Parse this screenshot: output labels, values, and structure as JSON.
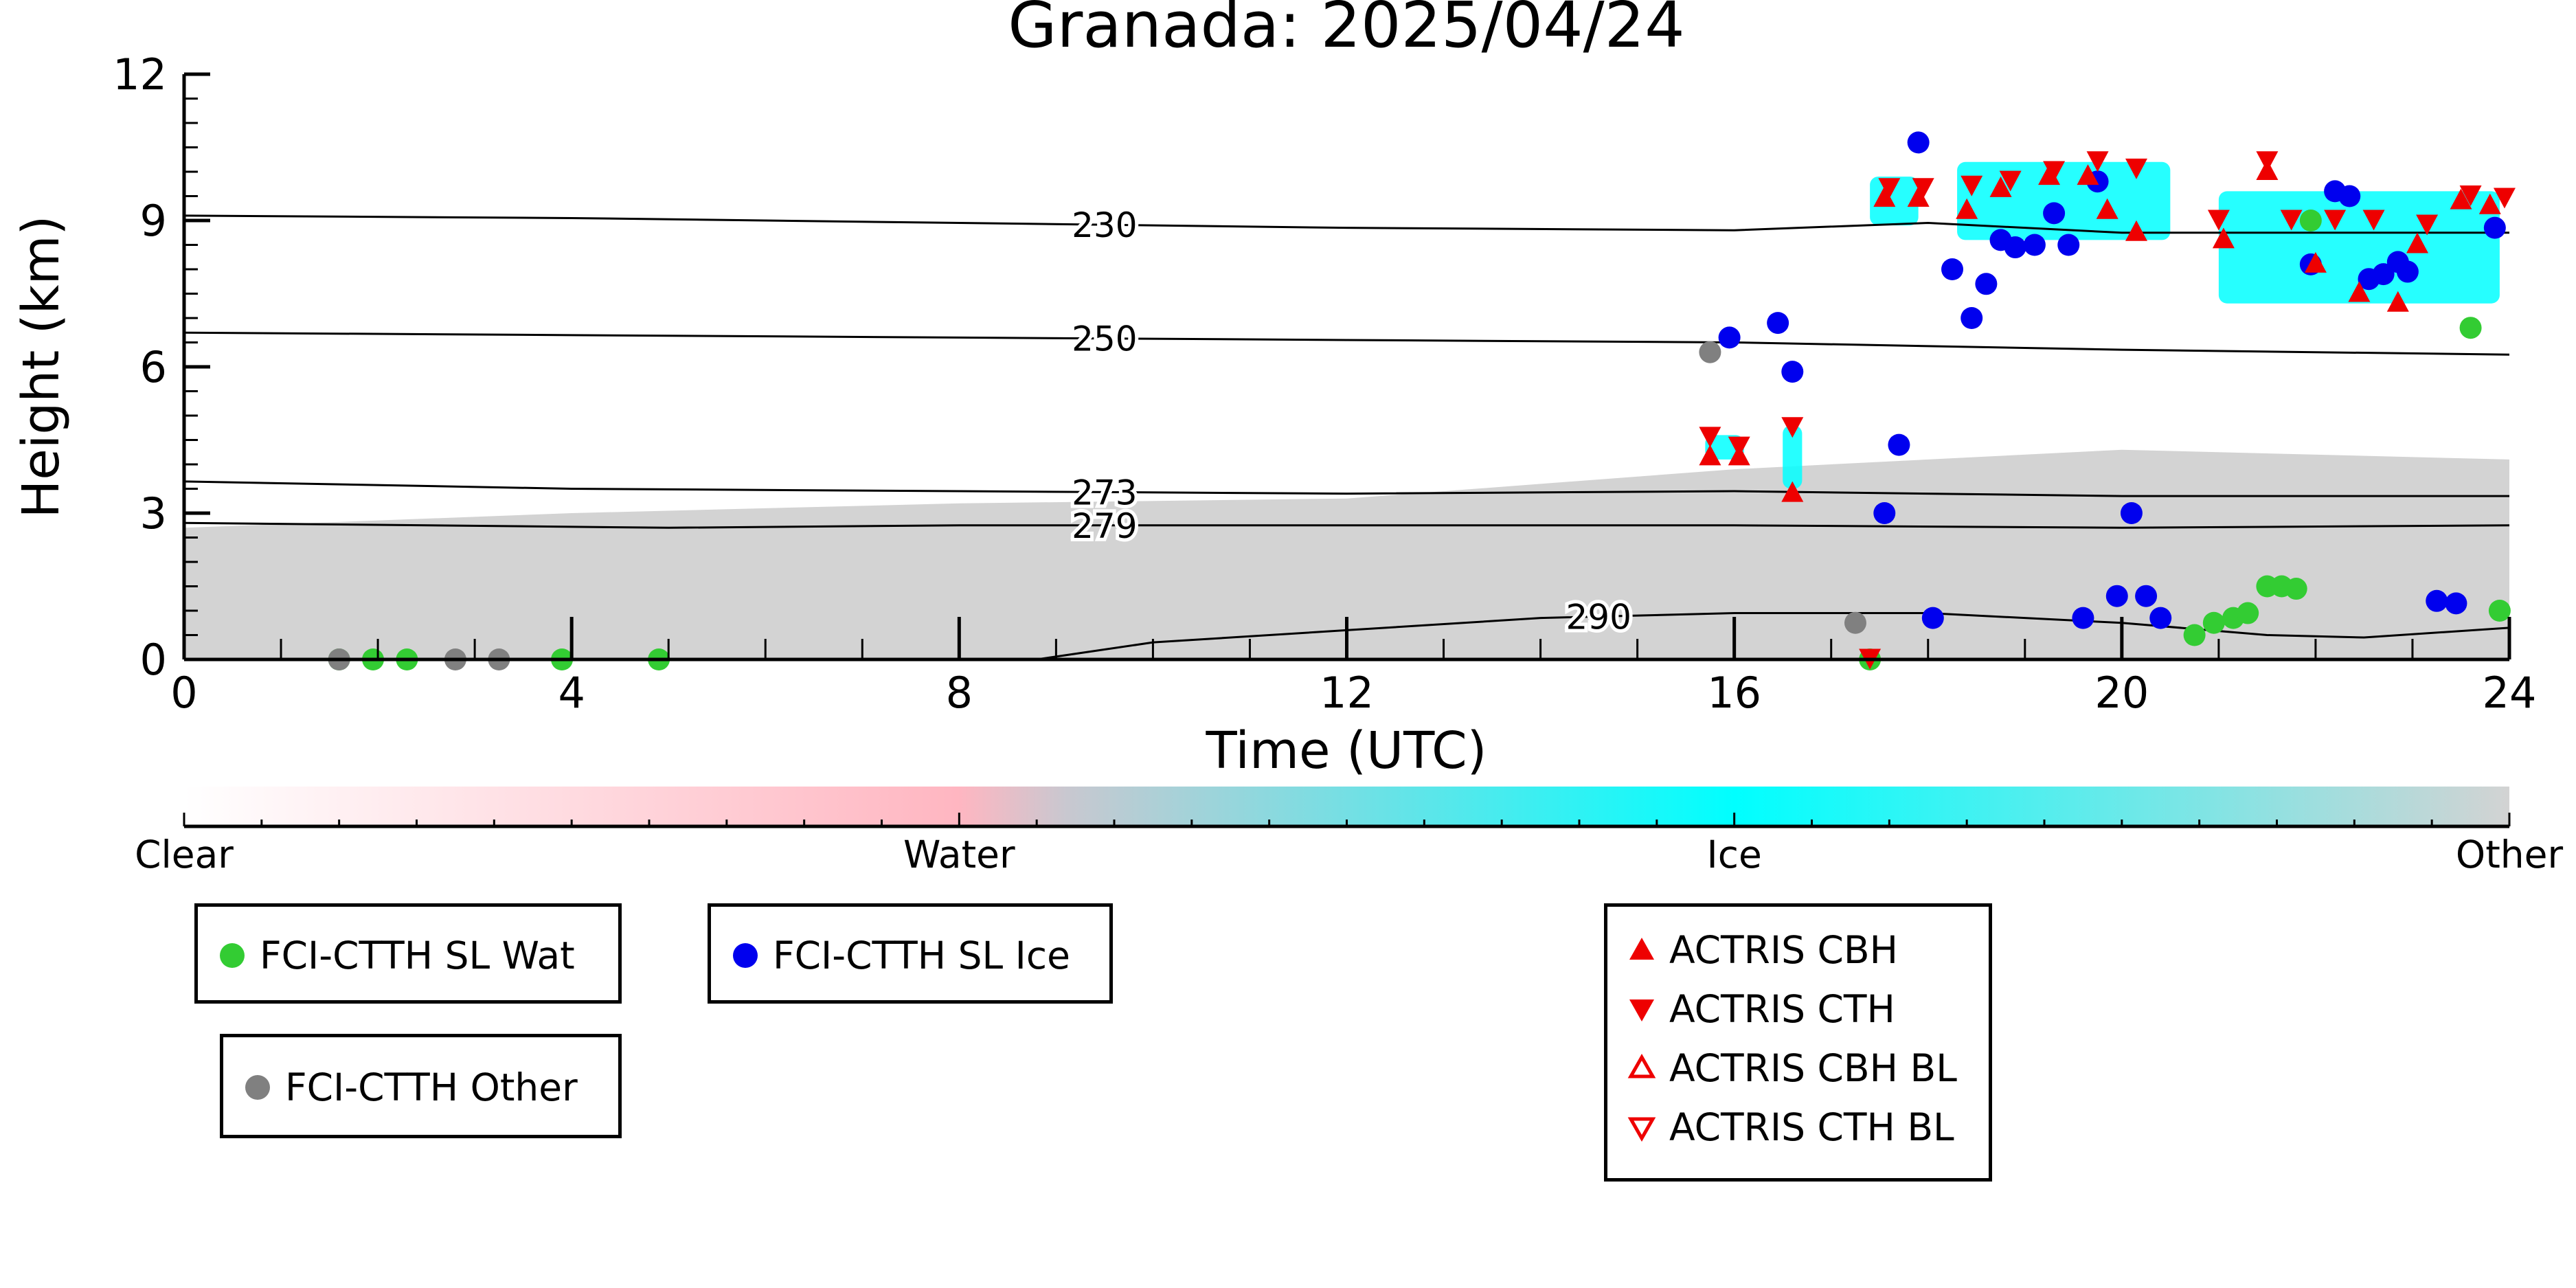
{
  "chart_data": {
    "type": "scatter",
    "title": "Granada: 2025/04/24",
    "xlabel": "Time (UTC)",
    "ylabel": "Height (km)",
    "xlim": [
      0,
      24
    ],
    "ylim": [
      0,
      12
    ],
    "x_ticks": [
      "0",
      "4",
      "8",
      "12",
      "16",
      "20",
      "24"
    ],
    "y_ticks": [
      "0",
      "3",
      "6",
      "9",
      "12"
    ],
    "colorbar": {
      "labels": [
        "Clear",
        "Water",
        "Ice",
        "Other"
      ],
      "colors": [
        "#ffffff",
        "#ffb6c1",
        "#00ffff",
        "#d3d3d3"
      ]
    },
    "background_field": {
      "description_color": "#d3d3d3",
      "boundary_layer_top_km": [
        [
          0,
          2.7
        ],
        [
          4,
          3.0
        ],
        [
          8,
          3.2
        ],
        [
          12,
          3.3
        ],
        [
          16,
          3.9
        ],
        [
          20,
          4.3
        ],
        [
          24,
          4.1
        ]
      ],
      "ice_cloud_color": "#00ffff"
    },
    "isotherms": [
      {
        "label": "230",
        "points": [
          [
            0,
            9.1
          ],
          [
            4,
            9.05
          ],
          [
            8,
            8.95
          ],
          [
            12,
            8.85
          ],
          [
            16,
            8.8
          ],
          [
            18,
            8.95
          ],
          [
            20,
            8.75
          ],
          [
            24,
            8.75
          ]
        ]
      },
      {
        "label": "250",
        "points": [
          [
            0,
            6.7
          ],
          [
            4,
            6.65
          ],
          [
            8,
            6.6
          ],
          [
            12,
            6.55
          ],
          [
            16,
            6.5
          ],
          [
            20,
            6.35
          ],
          [
            24,
            6.25
          ]
        ]
      },
      {
        "label": "273",
        "points": [
          [
            0,
            3.65
          ],
          [
            4,
            3.5
          ],
          [
            8,
            3.45
          ],
          [
            12,
            3.4
          ],
          [
            16,
            3.45
          ],
          [
            20,
            3.35
          ],
          [
            24,
            3.35
          ]
        ]
      },
      {
        "label": "279",
        "points": [
          [
            0,
            2.8
          ],
          [
            5,
            2.7
          ],
          [
            8,
            2.75
          ],
          [
            12,
            2.75
          ],
          [
            16,
            2.75
          ],
          [
            20,
            2.7
          ],
          [
            24,
            2.75
          ]
        ]
      },
      {
        "label": "290",
        "points": [
          [
            0,
            0
          ],
          [
            8.8,
            0
          ],
          [
            10,
            0.35
          ],
          [
            12,
            0.6
          ],
          [
            14,
            0.85
          ],
          [
            16,
            0.95
          ],
          [
            18,
            0.95
          ],
          [
            20,
            0.75
          ],
          [
            21.5,
            0.5
          ],
          [
            22.5,
            0.45
          ],
          [
            24,
            0.65
          ]
        ]
      }
    ],
    "series": [
      {
        "name": "FCI-CTTH SL Wat",
        "color": "#33cc33",
        "marker": "circle",
        "points": [
          [
            1.6,
            0
          ],
          [
            1.95,
            0
          ],
          [
            2.3,
            0
          ],
          [
            3.9,
            0
          ],
          [
            4.9,
            0
          ],
          [
            17.4,
            0
          ],
          [
            20.75,
            0.5
          ],
          [
            20.95,
            0.75
          ],
          [
            21.15,
            0.85
          ],
          [
            21.3,
            0.95
          ],
          [
            21.5,
            1.5
          ],
          [
            21.65,
            1.5
          ],
          [
            21.8,
            1.45
          ],
          [
            21.95,
            9.0
          ],
          [
            23.6,
            6.8
          ],
          [
            23.9,
            1.0
          ]
        ]
      },
      {
        "name": "FCI-CTTH SL Ice",
        "color": "#0000ee",
        "marker": "circle",
        "points": [
          [
            15.95,
            6.6
          ],
          [
            16.45,
            6.9
          ],
          [
            16.6,
            5.9
          ],
          [
            17.55,
            3.0
          ],
          [
            17.7,
            4.4
          ],
          [
            17.9,
            10.6
          ],
          [
            18.05,
            0.85
          ],
          [
            18.25,
            8.0
          ],
          [
            18.45,
            7.0
          ],
          [
            18.6,
            7.7
          ],
          [
            18.75,
            8.6
          ],
          [
            18.9,
            8.45
          ],
          [
            19.1,
            8.5
          ],
          [
            19.3,
            9.15
          ],
          [
            19.45,
            8.5
          ],
          [
            19.6,
            0.85
          ],
          [
            19.75,
            9.8
          ],
          [
            19.95,
            1.3
          ],
          [
            20.1,
            3.0
          ],
          [
            20.25,
            1.3
          ],
          [
            20.4,
            0.85
          ],
          [
            21.95,
            8.1
          ],
          [
            22.2,
            9.6
          ],
          [
            22.35,
            9.5
          ],
          [
            22.55,
            7.8
          ],
          [
            22.7,
            7.9
          ],
          [
            22.85,
            8.15
          ],
          [
            22.95,
            7.95
          ],
          [
            23.25,
            1.2
          ],
          [
            23.45,
            1.15
          ],
          [
            23.85,
            8.85
          ]
        ]
      },
      {
        "name": "FCI-CTTH Other",
        "color": "#808080",
        "marker": "circle",
        "points": [
          [
            1.6,
            0
          ],
          [
            2.8,
            0
          ],
          [
            3.25,
            0
          ],
          [
            15.75,
            6.3
          ],
          [
            17.25,
            0.75
          ]
        ]
      },
      {
        "name": "ACTRIS CBH",
        "color": "#ee0000",
        "marker": "triangle-up",
        "points": [
          [
            15.75,
            4.15
          ],
          [
            16.05,
            4.15
          ],
          [
            16.6,
            3.4
          ],
          [
            17.55,
            9.45
          ],
          [
            17.9,
            9.45
          ],
          [
            18.4,
            9.2
          ],
          [
            18.75,
            9.65
          ],
          [
            19.25,
            9.9
          ],
          [
            19.65,
            9.9
          ],
          [
            19.85,
            9.2
          ],
          [
            20.15,
            8.75
          ],
          [
            21.05,
            8.6
          ],
          [
            21.5,
            10.0
          ],
          [
            22.0,
            8.1
          ],
          [
            22.45,
            7.5
          ],
          [
            22.85,
            7.3
          ],
          [
            23.05,
            8.5
          ],
          [
            23.5,
            9.4
          ],
          [
            23.8,
            9.3
          ]
        ]
      },
      {
        "name": "ACTRIS CTH",
        "color": "#ee0000",
        "marker": "triangle-down",
        "points": [
          [
            15.75,
            4.6
          ],
          [
            16.05,
            4.4
          ],
          [
            16.6,
            4.8
          ],
          [
            17.4,
            0.05
          ],
          [
            17.6,
            9.7
          ],
          [
            17.95,
            9.7
          ],
          [
            18.45,
            9.75
          ],
          [
            18.85,
            9.85
          ],
          [
            19.3,
            10.05
          ],
          [
            19.75,
            10.25
          ],
          [
            20.15,
            10.1
          ],
          [
            21.0,
            9.05
          ],
          [
            21.5,
            10.25
          ],
          [
            21.75,
            9.05
          ],
          [
            22.2,
            9.05
          ],
          [
            22.6,
            9.05
          ],
          [
            23.15,
            8.95
          ],
          [
            23.6,
            9.55
          ],
          [
            23.95,
            9.5
          ]
        ]
      },
      {
        "name": "ACTRIS CBH BL",
        "color": "#ee0000",
        "marker": "triangle-up-open",
        "points": []
      },
      {
        "name": "ACTRIS CTH BL",
        "color": "#ee0000",
        "marker": "triangle-down-open",
        "points": []
      }
    ]
  }
}
